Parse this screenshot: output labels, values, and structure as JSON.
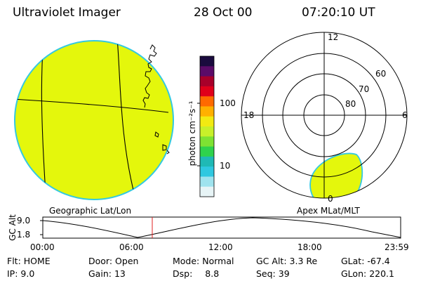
{
  "header": {
    "title": "Ultraviolet Imager",
    "date": "28 Oct 00",
    "time": "07:20:10 UT"
  },
  "geo_panel": {
    "label": "Geographic Lat/Lon",
    "fill_color": "#e4f70c",
    "edge_color": "#34c9e0"
  },
  "color_bar": {
    "unit_label": "photon cm⁻²s⁻¹",
    "ticks": [
      "100",
      "10"
    ],
    "colors_top_to_bottom": [
      "#1a0b3e",
      "#5b0b68",
      "#a8002a",
      "#e0001a",
      "#ff6a00",
      "#ffb000",
      "#f2ea12",
      "#c8f02a",
      "#7ee233",
      "#2fd24c",
      "#1fb9b5",
      "#2fc8e0",
      "#9fe3ee",
      "#e7f4f6"
    ]
  },
  "polar_panel": {
    "label": "Apex MLat/MLT",
    "mlt_labels": {
      "top": "12",
      "left": "18",
      "right": "6",
      "bottom": "0"
    },
    "lat_labels": [
      "60",
      "70",
      "80"
    ],
    "fill_color": "#e4f70c",
    "edge_color": "#34c9e0"
  },
  "timeline": {
    "axis_title": "GC Alt",
    "y_ticks": [
      "9.0",
      "1.8"
    ],
    "x_ticks": [
      "00:00",
      "06:00",
      "12:00",
      "18:00",
      "23:59"
    ],
    "marker_color": "#e02020"
  },
  "info": {
    "row1": {
      "flt_label": "Flt:",
      "flt_value": "HOME",
      "door_label": "Door:",
      "door_value": "Open",
      "mode_label": "Mode:",
      "mode_value": "Normal",
      "gcalt_label": "GC Alt:",
      "gcalt_value": "3.3 Re",
      "glat_label": "GLat:",
      "glat_value": "-67.4"
    },
    "row2": {
      "ip_label": "IP:",
      "ip_value": "9.0",
      "gain_label": "Gain:",
      "gain_value": "13",
      "dsp_label": "Dsp:",
      "dsp_value": "8.8",
      "seq_label": "Seq:",
      "seq_value": "39",
      "glon_label": "GLon:",
      "glon_value": "220.1"
    }
  }
}
